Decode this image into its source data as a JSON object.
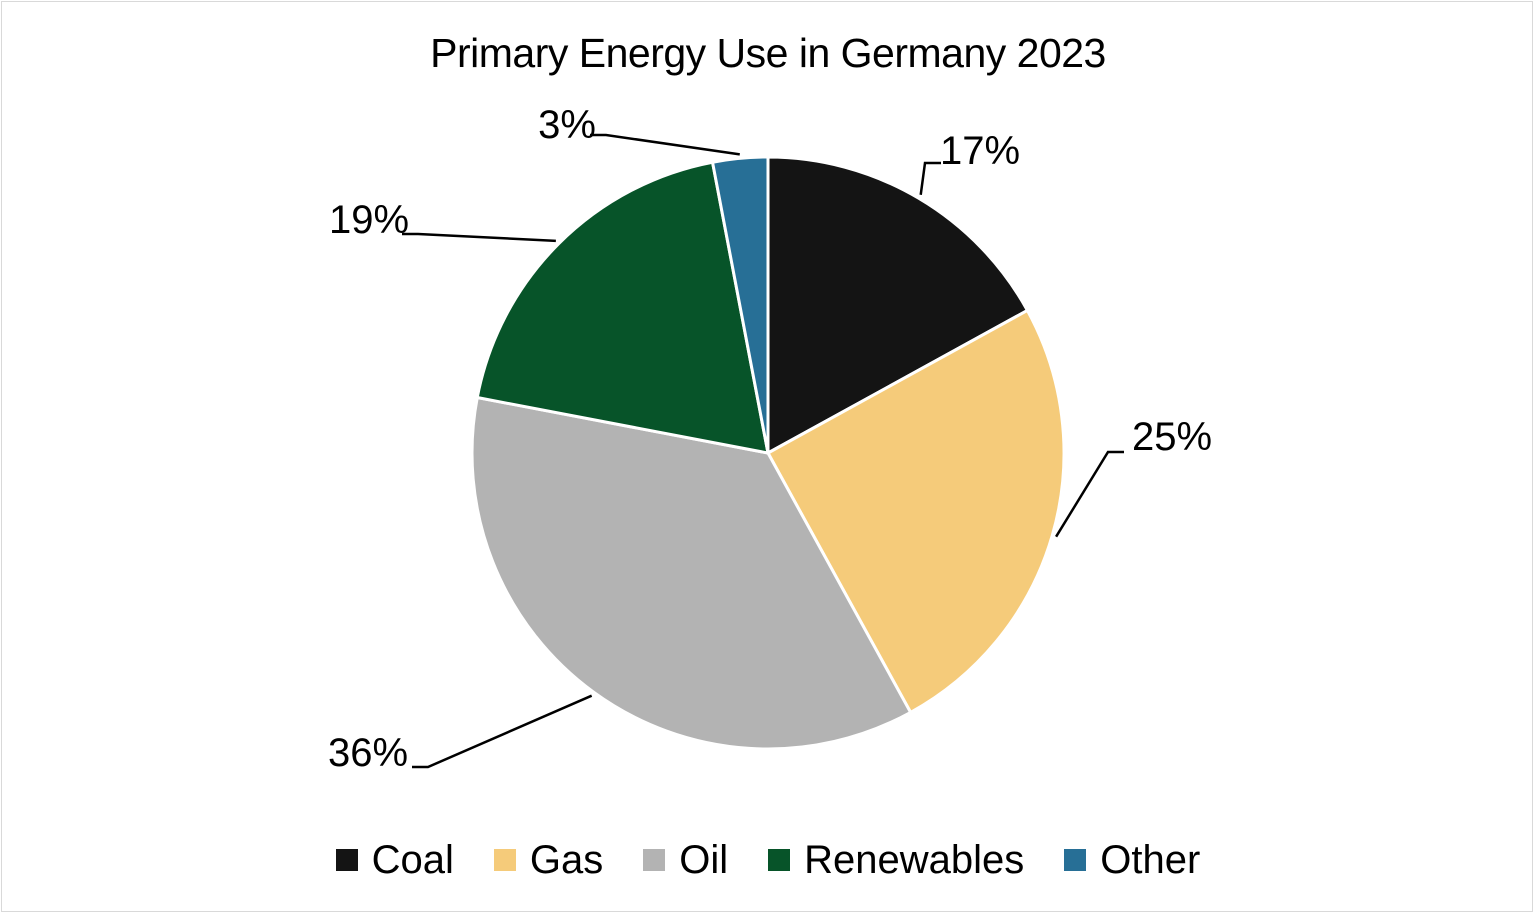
{
  "chart_data": {
    "type": "pie",
    "title": "Primary Energy Use in Germany 2023",
    "categories": [
      "Coal",
      "Gas",
      "Oil",
      "Renewables",
      "Other"
    ],
    "values": [
      17,
      25,
      36,
      19,
      3
    ],
    "data_labels": [
      "17%",
      "25%",
      "36%",
      "19%",
      "3%"
    ],
    "colors": [
      "#141414",
      "#f5cb7a",
      "#b3b3b3",
      "#075429",
      "#276f96"
    ],
    "unit": "%",
    "start_angle": "12 o'clock",
    "direction": "clockwise",
    "legend_position": "bottom"
  }
}
